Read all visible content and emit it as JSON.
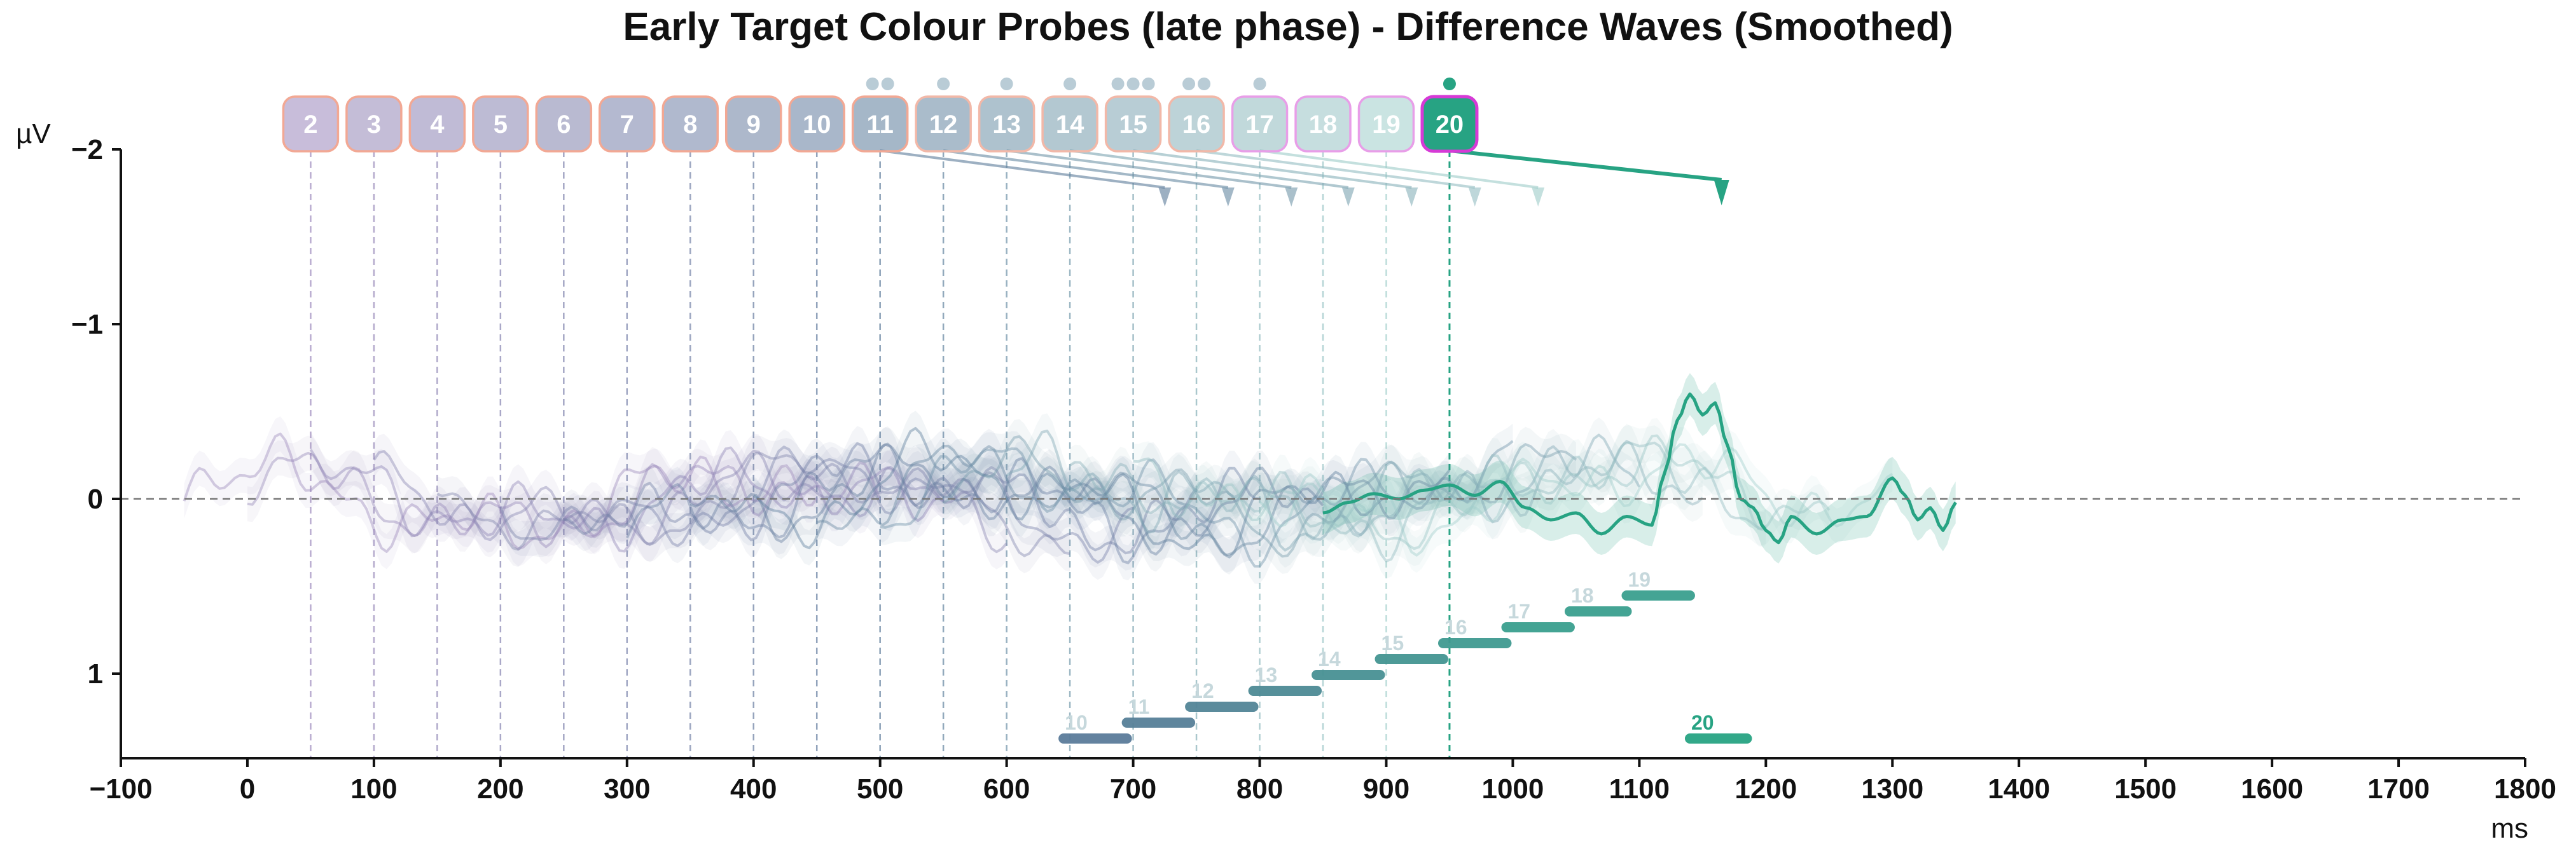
{
  "chart_data": {
    "type": "line",
    "title": "Early Target Colour Probes (late phase) - Difference Waves (Smoothed)",
    "xlabel": "ms",
    "ylabel": "µV",
    "xlim": [
      -100,
      1800
    ],
    "ylim": [
      1.5,
      -2.2
    ],
    "y_inverted": true,
    "x_ticks": [
      -100,
      0,
      100,
      200,
      300,
      400,
      500,
      600,
      700,
      800,
      900,
      1000,
      1100,
      1200,
      1300,
      1400,
      1500,
      1600,
      1700,
      1800
    ],
    "x_tick_labels": [
      "−100",
      "0",
      "100",
      "200",
      "300",
      "400",
      "500",
      "600",
      "700",
      "800",
      "900",
      "1000",
      "1100",
      "1200",
      "1300",
      "1400",
      "1500",
      "1600",
      "1700",
      "1800"
    ],
    "y_ticks": [
      -2,
      -1,
      0,
      1
    ],
    "y_tick_labels": [
      "−2",
      "−1",
      "0",
      "1"
    ],
    "zero_line": true,
    "grid": false,
    "highlighted_probe": "20",
    "colors": {
      "highlight": "#27a383",
      "highlight_border": "#d63ad6",
      "purple": "#9b87bb",
      "slate": "#5b7b9a",
      "teal_light": "#a8d8d0",
      "axis": "#111111",
      "zero_line": "#777777"
    },
    "probes": [
      {
        "label": "2",
        "onset": 50,
        "sig": null
      },
      {
        "label": "3",
        "onset": 100,
        "sig": null
      },
      {
        "label": "4",
        "onset": 150,
        "sig": null
      },
      {
        "label": "5",
        "onset": 200,
        "sig": null
      },
      {
        "label": "6",
        "onset": 250,
        "sig": null
      },
      {
        "label": "7",
        "onset": 300,
        "sig": null
      },
      {
        "label": "8",
        "onset": 350,
        "sig": null
      },
      {
        "label": "9",
        "onset": 400,
        "sig": null
      },
      {
        "label": "10",
        "onset": 450,
        "sig": [
          645,
          695
        ]
      },
      {
        "label": "11",
        "onset": 500,
        "sig": [
          695,
          745
        ]
      },
      {
        "label": "12",
        "onset": 550,
        "sig": [
          745,
          795
        ]
      },
      {
        "label": "13",
        "onset": 600,
        "sig": [
          795,
          845
        ]
      },
      {
        "label": "14",
        "onset": 650,
        "sig": [
          845,
          895
        ]
      },
      {
        "label": "15",
        "onset": 700,
        "sig": [
          895,
          945
        ]
      },
      {
        "label": "16",
        "onset": 750,
        "sig": [
          945,
          995
        ]
      },
      {
        "label": "17",
        "onset": 800,
        "sig": [
          995,
          1045
        ]
      },
      {
        "label": "18",
        "onset": 850,
        "sig": [
          1045,
          1090
        ]
      },
      {
        "label": "19",
        "onset": 900,
        "sig": [
          1090,
          1140
        ]
      },
      {
        "label": "20",
        "onset": 950,
        "sig": [
          1140,
          1185
        ]
      }
    ],
    "arrows": [
      {
        "from": 500,
        "to": 725
      },
      {
        "from": 550,
        "to": 775
      },
      {
        "from": 600,
        "to": 825
      },
      {
        "from": 650,
        "to": 870
      },
      {
        "from": 700,
        "to": 920
      },
      {
        "from": 750,
        "to": 970
      },
      {
        "from": 800,
        "to": 1020
      },
      {
        "from": 950,
        "to": 1165,
        "highlight": true
      }
    ],
    "probe_dots": [
      {
        "x": 500,
        "count": 2
      },
      {
        "x": 550,
        "count": 1
      },
      {
        "x": 600,
        "count": 1
      },
      {
        "x": 650,
        "count": 1
      },
      {
        "x": 700,
        "count": 3
      },
      {
        "x": 750,
        "count": 2
      },
      {
        "x": 800,
        "count": 1
      },
      {
        "x": 950,
        "count": 1,
        "highlight": true
      }
    ],
    "series": [
      {
        "label": "2",
        "x_start": -50,
        "x_end": 450,
        "seed": 1
      },
      {
        "label": "3",
        "x_start": 0,
        "x_end": 500,
        "seed": 2
      },
      {
        "label": "4",
        "x_start": 50,
        "x_end": 550,
        "seed": 3
      },
      {
        "label": "5",
        "x_start": 100,
        "x_end": 600,
        "seed": 4
      },
      {
        "label": "6",
        "x_start": 150,
        "x_end": 650,
        "seed": 5
      },
      {
        "label": "7",
        "x_start": 200,
        "x_end": 700,
        "seed": 6
      },
      {
        "label": "8",
        "x_start": 250,
        "x_end": 750,
        "seed": 7
      },
      {
        "label": "9",
        "x_start": 300,
        "x_end": 800,
        "seed": 8
      },
      {
        "label": "10",
        "x_start": 350,
        "x_end": 850,
        "seed": 9
      },
      {
        "label": "11",
        "x_start": 400,
        "x_end": 900,
        "seed": 10
      },
      {
        "label": "12",
        "x_start": 450,
        "x_end": 950,
        "seed": 11
      },
      {
        "label": "13",
        "x_start": 500,
        "x_end": 1000,
        "seed": 12
      },
      {
        "label": "14",
        "x_start": 550,
        "x_end": 1050,
        "seed": 13
      },
      {
        "label": "15",
        "x_start": 600,
        "x_end": 1100,
        "seed": 14
      },
      {
        "label": "16",
        "x_start": 650,
        "x_end": 1150,
        "seed": 15
      },
      {
        "label": "17",
        "x_start": 700,
        "x_end": 1200,
        "seed": 16
      },
      {
        "label": "18",
        "x_start": 750,
        "x_end": 1250,
        "seed": 17
      },
      {
        "label": "19",
        "x_start": 800,
        "x_end": 1300,
        "seed": 18
      },
      {
        "label": "20",
        "highlight": true,
        "x": [
          850,
          870,
          890,
          910,
          930,
          950,
          970,
          990,
          1010,
          1030,
          1050,
          1070,
          1090,
          1110,
          1120,
          1130,
          1140,
          1150,
          1160,
          1170,
          1180,
          1190,
          1200,
          1210,
          1220,
          1240,
          1260,
          1280,
          1300,
          1310,
          1320,
          1330,
          1340,
          1350
        ],
        "y": [
          0.08,
          0.02,
          -0.03,
          0.0,
          -0.05,
          -0.08,
          -0.02,
          -0.1,
          0.05,
          0.12,
          0.08,
          0.2,
          0.1,
          0.15,
          -0.15,
          -0.45,
          -0.6,
          -0.48,
          -0.55,
          -0.3,
          0.0,
          0.05,
          0.18,
          0.25,
          0.1,
          0.2,
          0.12,
          0.1,
          -0.12,
          -0.02,
          0.12,
          0.05,
          0.18,
          0.02
        ]
      }
    ]
  }
}
